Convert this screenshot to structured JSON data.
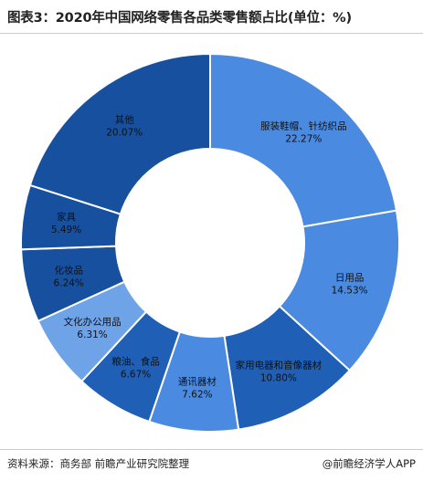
{
  "header": {
    "title": "图表3：2020年中国网络零售各品类零售额占比(单位：%)"
  },
  "footer": {
    "source": "资料来源：商务部 前瞻产业研究院整理",
    "brand": "@前瞻经济学人APP"
  },
  "chart_data": {
    "type": "pie",
    "donut": true,
    "title": "图表3：2020年中国网络零售各品类零售额占比(单位：%)",
    "unit": "%",
    "categories": [
      "服装鞋帽、针纺织品",
      "日用品",
      "家用电器和音像器材",
      "通讯器材",
      "粮油、食品",
      "文化办公用品",
      "化妆品",
      "家具",
      "其他"
    ],
    "values": [
      22.27,
      14.53,
      10.8,
      7.62,
      6.67,
      6.31,
      6.24,
      5.49,
      20.07
    ],
    "value_labels": [
      "22.27%",
      "14.53%",
      "10.80%",
      "7.62%",
      "6.67%",
      "6.31%",
      "6.24%",
      "5.49%",
      "20.07%"
    ],
    "colors": [
      "#4a8ae0",
      "#4a8ae0",
      "#1f5fb6",
      "#4a8ae0",
      "#1f5fb6",
      "#6ea3e8",
      "#16509f",
      "#16509f",
      "#16509f"
    ],
    "legend": "none"
  }
}
